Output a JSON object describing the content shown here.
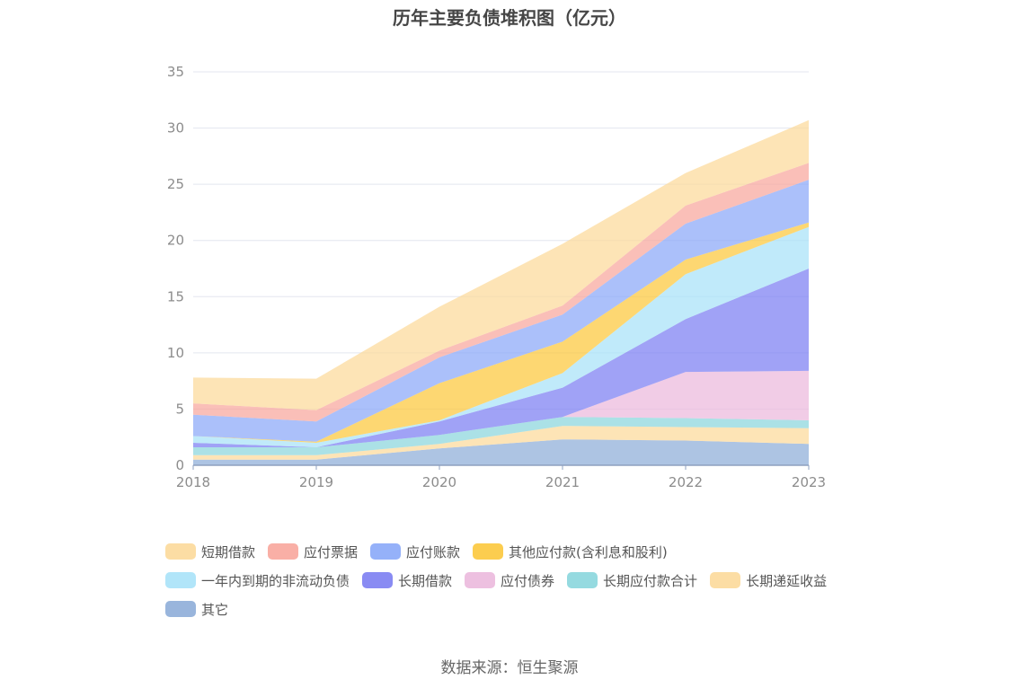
{
  "chart_data": {
    "type": "area",
    "stacked": true,
    "title": "历年主要负债堆积图（亿元）",
    "xlabel": "",
    "ylabel": "",
    "x": [
      "2018",
      "2019",
      "2020",
      "2021",
      "2022",
      "2023"
    ],
    "ylim": [
      0,
      35
    ],
    "yticks": [
      0,
      5,
      10,
      15,
      20,
      25,
      30,
      35
    ],
    "grid": true,
    "legend_position": "bottom",
    "series": [
      {
        "name": "其它",
        "color": "#8eadd8",
        "values": [
          0.5,
          0.5,
          1.5,
          2.3,
          2.2,
          1.9
        ]
      },
      {
        "name": "长期递延收益",
        "color": "#fcd99a",
        "values": [
          0.4,
          0.4,
          0.4,
          1.2,
          1.2,
          1.4
        ]
      },
      {
        "name": "长期应付款合计",
        "color": "#8ad6dd",
        "values": [
          0.7,
          0.7,
          0.8,
          0.8,
          0.8,
          0.7
        ]
      },
      {
        "name": "应付债券",
        "color": "#ebb9dd",
        "values": [
          0.0,
          0.0,
          0.0,
          0.0,
          4.1,
          4.4
        ]
      },
      {
        "name": "长期借款",
        "color": "#7c7ef2",
        "values": [
          0.4,
          0.0,
          1.2,
          2.6,
          4.7,
          9.1
        ]
      },
      {
        "name": "一年内到期的非流动负债",
        "color": "#a8e2f8",
        "values": [
          0.6,
          0.4,
          0.1,
          1.3,
          4.0,
          3.7
        ]
      },
      {
        "name": "其他应付款(含利息和股利)",
        "color": "#fcc83c",
        "values": [
          0.0,
          0.1,
          3.3,
          2.8,
          1.3,
          0.4
        ]
      },
      {
        "name": "应付账款",
        "color": "#8aa8f8",
        "values": [
          1.9,
          1.8,
          2.3,
          2.4,
          3.2,
          3.8
        ]
      },
      {
        "name": "应付票据",
        "color": "#f8a69c",
        "values": [
          1.0,
          1.0,
          0.6,
          0.8,
          1.6,
          1.5
        ]
      },
      {
        "name": "短期借款",
        "color": "#fcd99a",
        "values": [
          2.3,
          2.8,
          3.9,
          5.5,
          2.9,
          3.8
        ]
      }
    ],
    "legend_order": [
      "短期借款",
      "应付票据",
      "应付账款",
      "其他应付款(含利息和股利)",
      "一年内到期的非流动负债",
      "长期借款",
      "应付债券",
      "长期应付款合计",
      "长期递延收益",
      "其它"
    ]
  },
  "source_note": "数据来源：恒生聚源"
}
